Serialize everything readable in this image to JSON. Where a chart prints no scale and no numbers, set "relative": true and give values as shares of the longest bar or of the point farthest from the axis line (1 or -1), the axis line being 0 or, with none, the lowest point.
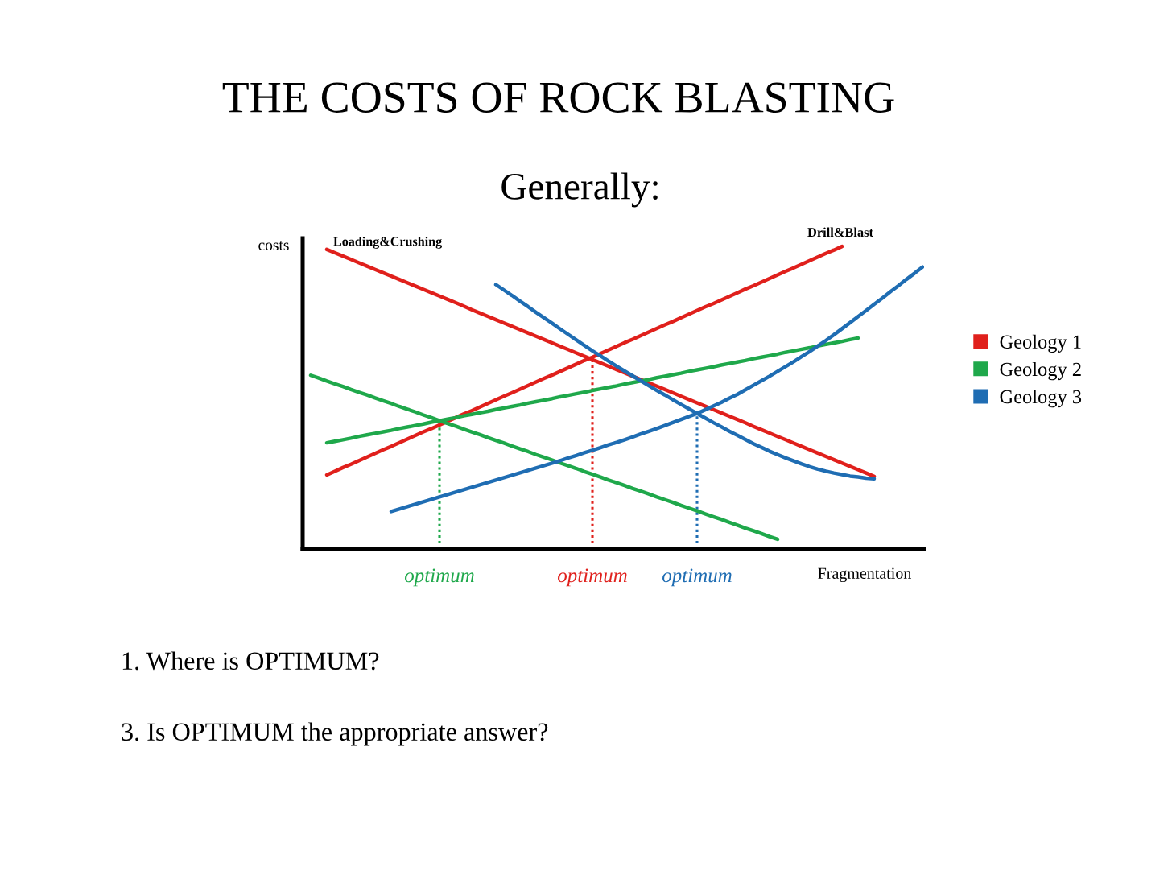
{
  "chart_data": {
    "type": "line",
    "title": "THE COSTS OF ROCK BLASTING",
    "subtitle": "Generally:",
    "xlabel": "Fragmentation",
    "ylabel": "costs",
    "relative": true,
    "legend": "right",
    "line_style": "solid",
    "categories": [
      null,
      null,
      null,
      null,
      null,
      null,
      null,
      null,
      null,
      null,
      null,
      null,
      null,
      null,
      null,
      null,
      null,
      null,
      null,
      null,
      null,
      null,
      null,
      null,
      null,
      null,
      null,
      null,
      null,
      null,
      null,
      null,
      null,
      null,
      null,
      null,
      null,
      null,
      null,
      null,
      null,
      null,
      null,
      null,
      null,
      null,
      null,
      null,
      null,
      null,
      null,
      null,
      null,
      null,
      null,
      null,
      null,
      null,
      null,
      null,
      null,
      null,
      null,
      null,
      null,
      null,
      null,
      null,
      null,
      null,
      null,
      null,
      null,
      null,
      null,
      null,
      null
    ],
    "series": [
      {
        "name": "Geology 1",
        "color": "#e0201c",
        "values": [
          null,
          null,
          0.99,
          0.979,
          0.968,
          0.957,
          0.946,
          0.935,
          0.924,
          0.913,
          0.902,
          0.891,
          0.88,
          0.869,
          0.858,
          0.847,
          0.836,
          0.825,
          0.814,
          0.803,
          0.791,
          0.78,
          0.769,
          0.758,
          0.747,
          0.736,
          0.725,
          0.714,
          0.703,
          0.692,
          0.681,
          0.67,
          0.659,
          0.648,
          0.637,
          0.626,
          0.615,
          0.604,
          0.593,
          0.582,
          0.571,
          0.56,
          0.549,
          0.538,
          0.527,
          0.516,
          0.505,
          0.494,
          0.483,
          0.472,
          0.461,
          0.45,
          0.439,
          0.428,
          0.417,
          0.405,
          0.394,
          0.383,
          0.372,
          0.361,
          0.35,
          0.339,
          0.328,
          0.317,
          0.306,
          0.295,
          0.284,
          0.273,
          0.262,
          0.251,
          0.24,
          null,
          null,
          null,
          null,
          null,
          null
        ]
      },
      {
        "color": "#e0201c",
        "values": [
          null,
          null,
          0.245,
          0.257,
          0.269,
          0.28,
          0.292,
          0.304,
          0.316,
          0.328,
          0.339,
          0.351,
          0.363,
          0.375,
          0.387,
          0.398,
          0.41,
          0.422,
          0.434,
          0.446,
          0.457,
          0.469,
          0.481,
          0.493,
          0.505,
          0.516,
          0.528,
          0.54,
          0.552,
          0.564,
          0.575,
          0.587,
          0.599,
          0.611,
          0.623,
          0.634,
          0.646,
          0.658,
          0.67,
          0.682,
          0.693,
          0.705,
          0.717,
          0.729,
          0.741,
          0.752,
          0.764,
          0.776,
          0.788,
          0.8,
          0.811,
          0.823,
          0.835,
          0.847,
          0.859,
          0.87,
          0.882,
          0.894,
          0.906,
          0.918,
          0.929,
          0.941,
          0.953,
          0.965,
          0.977,
          0.988,
          1.0,
          null,
          null,
          null,
          null,
          null,
          null,
          null,
          null,
          null,
          null
        ]
      },
      {
        "name": "Geology 2",
        "color": "#1fa84b",
        "values": [
          null,
          null,
          0.351,
          0.356,
          0.361,
          0.366,
          0.372,
          0.377,
          0.382,
          0.387,
          0.392,
          0.398,
          0.403,
          0.408,
          0.413,
          0.419,
          0.424,
          0.429,
          0.434,
          0.44,
          0.445,
          0.45,
          0.455,
          0.461,
          0.466,
          0.471,
          0.476,
          0.482,
          0.487,
          0.492,
          0.497,
          0.503,
          0.508,
          0.513,
          0.518,
          0.524,
          0.529,
          0.534,
          0.539,
          0.545,
          0.55,
          0.555,
          0.56,
          0.566,
          0.571,
          0.576,
          0.581,
          0.587,
          0.592,
          0.597,
          0.602,
          0.608,
          0.613,
          0.618,
          0.623,
          0.629,
          0.634,
          0.639,
          0.644,
          0.65,
          0.655,
          0.66,
          0.665,
          0.671,
          0.676,
          0.681,
          0.686,
          0.692,
          0.697,
          null,
          null,
          null,
          null,
          null,
          null,
          null,
          null
        ]
      },
      {
        "color": "#1fa84b",
        "values": [
          0.574,
          0.565,
          0.555,
          0.546,
          0.537,
          0.527,
          0.518,
          0.509,
          0.499,
          0.49,
          0.481,
          0.471,
          0.462,
          0.453,
          0.443,
          0.434,
          0.424,
          0.415,
          0.406,
          0.396,
          0.387,
          0.378,
          0.368,
          0.359,
          0.35,
          0.34,
          0.331,
          0.322,
          0.312,
          0.303,
          0.294,
          0.284,
          0.275,
          0.266,
          0.256,
          0.247,
          0.238,
          0.228,
          0.219,
          0.21,
          0.2,
          0.191,
          0.182,
          0.172,
          0.163,
          0.154,
          0.144,
          0.135,
          0.126,
          0.116,
          0.107,
          0.098,
          0.088,
          0.079,
          0.069,
          0.06,
          0.051,
          0.041,
          0.032,
          null,
          null,
          null,
          null,
          null,
          null,
          null,
          null,
          null,
          null,
          null,
          null,
          null,
          null,
          null,
          null,
          null,
          null
        ]
      },
      {
        "name": "Geology 3",
        "color": "#1f6db3",
        "values": [
          null,
          null,
          null,
          null,
          null,
          null,
          null,
          null,
          null,
          null,
          null,
          null,
          null,
          null,
          null,
          null,
          null,
          null,
          null,
          null,
          null,
          null,
          null,
          0.874,
          0.856,
          0.838,
          0.819,
          0.801,
          0.782,
          0.764,
          0.746,
          0.727,
          0.709,
          0.691,
          0.673,
          0.655,
          0.638,
          0.621,
          0.604,
          0.588,
          0.572,
          0.556,
          0.54,
          0.524,
          0.509,
          0.493,
          0.478,
          0.463,
          0.448,
          0.433,
          0.418,
          0.404,
          0.389,
          0.376,
          0.362,
          0.348,
          0.336,
          0.323,
          0.312,
          0.301,
          0.291,
          0.281,
          0.272,
          0.264,
          0.257,
          0.251,
          0.246,
          0.241,
          0.238,
          0.234,
          0.232,
          null,
          null,
          null,
          null,
          null,
          null
        ]
      },
      {
        "color": "#1f6db3",
        "values": [
          null,
          null,
          null,
          null,
          null,
          null,
          null,
          null,
          null,
          null,
          0.124,
          0.132,
          0.14,
          0.148,
          0.156,
          0.164,
          0.172,
          0.18,
          0.188,
          0.196,
          0.204,
          0.212,
          0.22,
          0.228,
          0.236,
          0.244,
          0.252,
          0.26,
          0.268,
          0.276,
          0.284,
          0.292,
          0.301,
          0.309,
          0.318,
          0.326,
          0.335,
          0.344,
          0.352,
          0.361,
          0.37,
          0.38,
          0.389,
          0.398,
          0.408,
          0.418,
          0.428,
          0.438,
          0.448,
          0.46,
          0.472,
          0.484,
          0.498,
          0.511,
          0.526,
          0.541,
          0.556,
          0.571,
          0.587,
          0.603,
          0.619,
          0.636,
          0.653,
          0.671,
          0.689,
          0.708,
          0.728,
          0.748,
          0.768,
          0.788,
          0.809,
          0.829,
          0.85,
          0.87,
          0.891,
          0.911,
          0.932
        ]
      }
    ],
    "annotations": [
      "Loading&Crushing",
      "Drill&Blast",
      "optimum",
      "optimum",
      "optimum",
      "1. Where is OPTIMUM?",
      "3. Is OPTIMUM the appropriate answer?"
    ]
  }
}
